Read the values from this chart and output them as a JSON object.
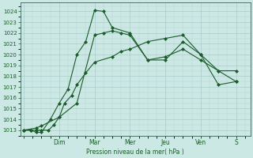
{
  "title": "",
  "xlabel": "Pression niveau de la mer( hPa )",
  "ylabel": "",
  "bg_color": "#cce8e4",
  "plot_bg_color": "#cce8e4",
  "grid_color": "#aacccc",
  "line_color": "#1a5c2a",
  "marker_color": "#1a5c2a",
  "ylim": [
    1012.5,
    1024.8
  ],
  "xtick_labels": [
    "",
    "Dim",
    "Mar",
    "Mer",
    "Jeu",
    "Ven",
    "S"
  ],
  "xtick_positions": [
    0,
    2,
    4,
    6,
    8,
    10,
    12
  ],
  "ytick_values": [
    1013,
    1014,
    1015,
    1016,
    1017,
    1018,
    1019,
    1020,
    1021,
    1022,
    1023,
    1024
  ],
  "series1_x": [
    0.0,
    0.4,
    0.7,
    1.0,
    1.4,
    1.7,
    2.0,
    2.3,
    2.7,
    3.0,
    3.5,
    4.0,
    5.0,
    5.5,
    6.0,
    7.0,
    8.0,
    9.0,
    10.0,
    11.0,
    12.0
  ],
  "series1_y": [
    1013.0,
    1013.0,
    1013.0,
    1013.0,
    1013.0,
    1013.5,
    1014.2,
    1015.5,
    1016.2,
    1017.2,
    1018.3,
    1019.3,
    1019.8,
    1020.3,
    1020.5,
    1021.2,
    1021.5,
    1021.8,
    1020.0,
    1017.2,
    1017.5
  ],
  "series2_x": [
    0.0,
    0.4,
    0.7,
    1.0,
    1.5,
    2.0,
    2.5,
    3.0,
    3.5,
    4.0,
    4.5,
    5.0,
    6.0,
    7.0,
    8.0,
    9.0,
    10.0,
    11.0,
    12.0
  ],
  "series2_y": [
    1013.0,
    1013.0,
    1012.8,
    1012.8,
    1014.0,
    1015.5,
    1016.8,
    1020.0,
    1021.2,
    1024.1,
    1024.0,
    1022.5,
    1022.0,
    1019.5,
    1019.8,
    1020.5,
    1019.5,
    1018.5,
    1018.5
  ],
  "series3_x": [
    0.0,
    0.7,
    1.0,
    2.0,
    3.0,
    4.0,
    4.5,
    5.0,
    5.5,
    6.0,
    7.0,
    8.0,
    9.0,
    10.0,
    11.0,
    12.0
  ],
  "series3_y": [
    1013.0,
    1013.2,
    1013.4,
    1014.2,
    1015.5,
    1021.8,
    1022.0,
    1022.2,
    1022.0,
    1021.8,
    1019.5,
    1019.5,
    1021.2,
    1020.0,
    1018.5,
    1017.5
  ],
  "figsize": [
    3.2,
    2.0
  ],
  "dpi": 100
}
